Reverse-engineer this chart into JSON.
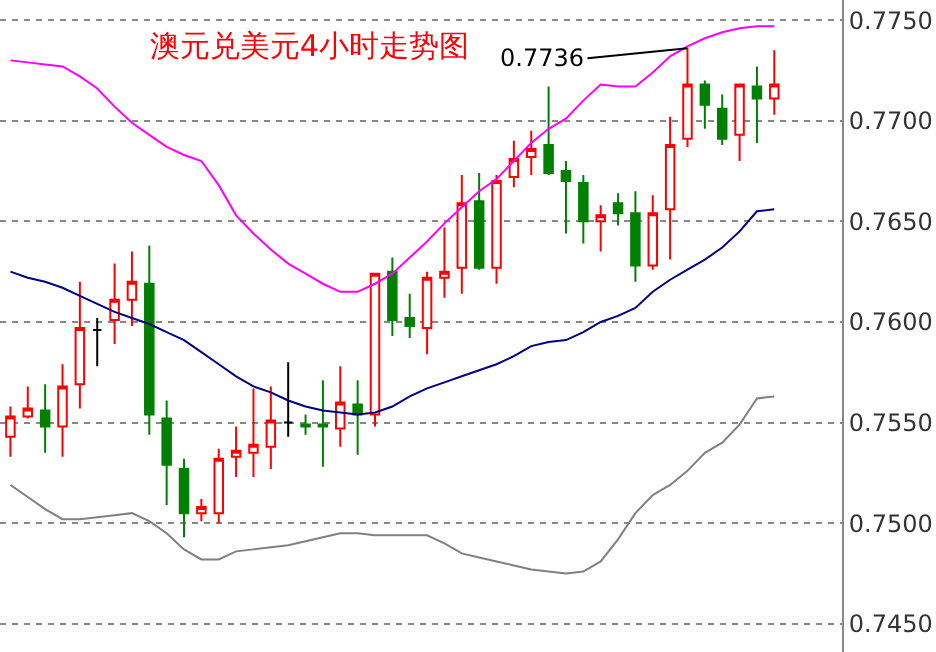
{
  "chart_data": {
    "type": "candlestick",
    "title": "澳元兑美元4小时走势图",
    "categories": [
      null,
      null,
      null,
      null,
      null,
      null,
      null,
      null,
      null,
      null,
      null,
      null,
      null,
      null,
      null,
      null,
      null,
      null,
      null,
      null,
      null,
      null,
      null,
      null,
      null,
      null,
      null,
      null,
      null,
      null,
      null,
      null,
      null,
      null,
      null,
      null,
      null,
      null,
      null,
      null,
      null,
      null,
      null,
      null,
      null
    ],
    "ohlc": [
      [
        0.7543,
        0.7558,
        0.7533,
        0.7553
      ],
      [
        0.7553,
        0.7568,
        0.7552,
        0.7557
      ],
      [
        0.7556,
        0.7569,
        0.7535,
        0.7548
      ],
      [
        0.7548,
        0.7579,
        0.7533,
        0.7568
      ],
      [
        0.7569,
        0.762,
        0.7557,
        0.7597
      ],
      [
        0.7596,
        0.7602,
        0.7578,
        0.7596
      ],
      [
        0.7601,
        0.7629,
        0.7589,
        0.7611
      ],
      [
        0.7611,
        0.7635,
        0.7598,
        0.762
      ],
      [
        0.7619,
        0.7638,
        0.7544,
        0.7554
      ],
      [
        0.7552,
        0.7561,
        0.7509,
        0.7529
      ],
      [
        0.7527,
        0.7532,
        0.7493,
        0.7505
      ],
      [
        0.7505,
        0.7512,
        0.7501,
        0.7508
      ],
      [
        0.7505,
        0.7537,
        0.75,
        0.7532
      ],
      [
        0.7533,
        0.7548,
        0.7523,
        0.7536
      ],
      [
        0.7535,
        0.7567,
        0.7523,
        0.7539
      ],
      [
        0.7538,
        0.7568,
        0.7527,
        0.7551
      ],
      [
        0.755,
        0.758,
        0.7543,
        0.755
      ],
      [
        0.7549,
        0.7554,
        0.7544,
        0.7548
      ],
      [
        0.7549,
        0.7571,
        0.7528,
        0.7548
      ],
      [
        0.7547,
        0.7578,
        0.7538,
        0.756
      ],
      [
        0.7559,
        0.7571,
        0.7534,
        0.7554
      ],
      [
        0.7554,
        0.7624,
        0.7548,
        0.7624
      ],
      [
        0.7625,
        0.7632,
        0.7593,
        0.7601
      ],
      [
        0.7602,
        0.7614,
        0.7592,
        0.7598
      ],
      [
        0.7597,
        0.7625,
        0.7584,
        0.7622
      ],
      [
        0.7622,
        0.7647,
        0.7612,
        0.7625
      ],
      [
        0.7627,
        0.7673,
        0.7614,
        0.7659
      ],
      [
        0.766,
        0.7674,
        0.7626,
        0.7627
      ],
      [
        0.7627,
        0.7673,
        0.7619,
        0.767
      ],
      [
        0.7672,
        0.769,
        0.7667,
        0.7681
      ],
      [
        0.7682,
        0.7695,
        0.7673,
        0.7686
      ],
      [
        0.7688,
        0.7717,
        0.7673,
        0.7674
      ],
      [
        0.7675,
        0.768,
        0.7644,
        0.767
      ],
      [
        0.7669,
        0.7673,
        0.7639,
        0.765
      ],
      [
        0.765,
        0.7658,
        0.7635,
        0.7653
      ],
      [
        0.7659,
        0.7664,
        0.7648,
        0.7654
      ],
      [
        0.7654,
        0.7665,
        0.762,
        0.7628
      ],
      [
        0.7628,
        0.7663,
        0.7626,
        0.7654
      ],
      [
        0.7656,
        0.7702,
        0.7631,
        0.7688
      ],
      [
        0.7691,
        0.7736,
        0.7687,
        0.7718
      ],
      [
        0.7718,
        0.772,
        0.7696,
        0.7708
      ],
      [
        0.7706,
        0.7713,
        0.7688,
        0.7691
      ],
      [
        0.7693,
        0.7718,
        0.768,
        0.7718
      ],
      [
        0.7717,
        0.7727,
        0.7689,
        0.7711
      ],
      [
        0.7711,
        0.7735,
        0.7703,
        0.7718
      ]
    ],
    "colors": [
      "#ff0000",
      "#ff0000",
      "#008000",
      "#ff0000",
      "#ff0000",
      "#000000",
      "#ff0000",
      "#ff0000",
      "#008000",
      "#008000",
      "#008000",
      "#ff0000",
      "#ff0000",
      "#ff0000",
      "#ff0000",
      "#ff0000",
      "#000000",
      "#008000",
      "#008000",
      "#ff0000",
      "#008000",
      "#ff0000",
      "#008000",
      "#008000",
      "#ff0000",
      "#ff0000",
      "#ff0000",
      "#008000",
      "#ff0000",
      "#ff0000",
      "#ff0000",
      "#008000",
      "#008000",
      "#008000",
      "#ff0000",
      "#008000",
      "#008000",
      "#ff0000",
      "#ff0000",
      "#ff0000",
      "#008000",
      "#008000",
      "#ff0000",
      "#008000",
      "#ff0000"
    ],
    "series": [
      {
        "type": "line",
        "color": "#ff00ff",
        "values": [
          0.773,
          0.7729,
          0.7728,
          0.7727,
          0.7722,
          0.7716,
          0.7707,
          0.7699,
          0.7693,
          0.7687,
          0.7683,
          0.768,
          0.7668,
          0.7653,
          0.7644,
          0.7636,
          0.7629,
          0.7624,
          0.7619,
          0.7615,
          0.7615,
          0.7619,
          0.7624,
          0.7632,
          0.764,
          0.7649,
          0.7657,
          0.7665,
          0.7671,
          0.768,
          0.7689,
          0.7696,
          0.7701,
          0.771,
          0.7718,
          0.7717,
          0.7717,
          0.7724,
          0.7732,
          0.7737,
          0.7741,
          0.7744,
          0.7746,
          0.7747,
          0.7747
        ]
      },
      {
        "type": "line",
        "color": "#000080",
        "values": [
          0.7625,
          0.7622,
          0.762,
          0.7617,
          0.7613,
          0.7609,
          0.7605,
          0.7602,
          0.7599,
          0.7595,
          0.7591,
          0.7585,
          0.7579,
          0.7573,
          0.7568,
          0.7565,
          0.7561,
          0.7558,
          0.7556,
          0.7555,
          0.7554,
          0.7555,
          0.7558,
          0.7563,
          0.7567,
          0.757,
          0.7573,
          0.7576,
          0.7579,
          0.7583,
          0.7588,
          0.759,
          0.7591,
          0.7595,
          0.76,
          0.7603,
          0.7607,
          0.7615,
          0.7621,
          0.7626,
          0.7631,
          0.7637,
          0.7645,
          0.7655,
          0.7656
        ]
      },
      {
        "type": "line",
        "color": "#808080",
        "values": [
          0.7519,
          0.7513,
          0.7507,
          0.7502,
          0.7502,
          0.7503,
          0.7504,
          0.7505,
          0.7501,
          0.7495,
          0.7487,
          0.7482,
          0.7482,
          0.7486,
          0.7487,
          0.7488,
          0.7489,
          0.7491,
          0.7493,
          0.7495,
          0.7495,
          0.7494,
          0.7494,
          0.7494,
          0.7494,
          0.749,
          0.7485,
          0.7483,
          0.7481,
          0.7479,
          0.7477,
          0.7476,
          0.7475,
          0.7476,
          0.7481,
          0.7492,
          0.7505,
          0.7514,
          0.7519,
          0.7526,
          0.7535,
          0.754,
          0.7549,
          0.7562,
          0.7563
        ]
      }
    ],
    "annotations": [
      "0.7736"
    ],
    "ylim": [
      0.7436,
      0.776
    ],
    "yticks": [
      {
        "value": 0.745,
        "label": "0.7450"
      },
      {
        "value": 0.75,
        "label": "0.7500"
      },
      {
        "value": 0.755,
        "label": "0.7550"
      },
      {
        "value": 0.76,
        "label": "0.7600"
      },
      {
        "value": 0.765,
        "label": "0.7650"
      },
      {
        "value": 0.77,
        "label": "0.7700"
      },
      {
        "value": 0.775,
        "label": "0.7750"
      }
    ],
    "grid": "y",
    "tick_labels": "y"
  }
}
